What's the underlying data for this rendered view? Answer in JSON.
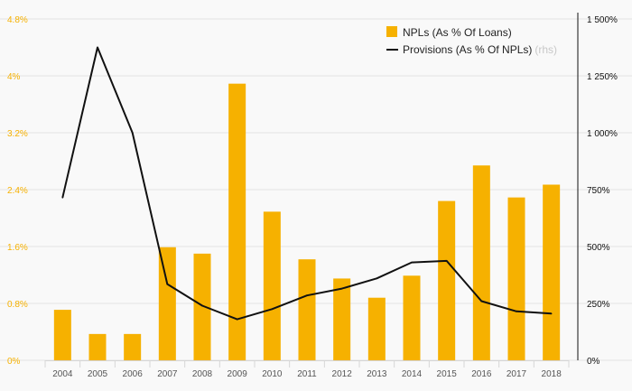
{
  "chart_data": {
    "type": "bar+line",
    "categories": [
      "2004",
      "2005",
      "2006",
      "2007",
      "2008",
      "2009",
      "2010",
      "2011",
      "2012",
      "2013",
      "2014",
      "2015",
      "2016",
      "2017",
      "2018"
    ],
    "series": [
      {
        "name": "NPLs (As % Of Loans)",
        "type": "bar",
        "axis": "left",
        "color": "#f6b100",
        "values": [
          0.71,
          0.37,
          0.37,
          1.59,
          1.5,
          3.89,
          2.09,
          1.42,
          1.15,
          0.88,
          1.19,
          2.24,
          2.74,
          2.29,
          2.47
        ]
      },
      {
        "name": "Provisions (As % Of NPLs)",
        "type": "line",
        "axis": "right",
        "color": "#111111",
        "values": [
          715,
          1375,
          1000,
          335,
          240,
          180,
          225,
          285,
          315,
          360,
          430,
          437,
          260,
          215,
          205
        ]
      }
    ],
    "y_left": {
      "min": 0,
      "max": 4.8,
      "ticks": [
        "0%",
        "0.8%",
        "1.6%",
        "2.4%",
        "3.2%",
        "4%",
        "4.8%"
      ],
      "tick_values": [
        0,
        0.8,
        1.6,
        2.4,
        3.2,
        4.0,
        4.8
      ]
    },
    "y_right": {
      "min": 0,
      "max": 1500,
      "ticks": [
        "0%",
        "250%",
        "500%",
        "750%",
        "1 000%",
        "1 250%",
        "1 500%"
      ],
      "tick_values": [
        0,
        250,
        500,
        750,
        1000,
        1250,
        1500
      ]
    },
    "legend": {
      "position": "top-right",
      "items": [
        {
          "label": "NPLs (As % Of Loans)",
          "suffix": ""
        },
        {
          "label": "Provisions (As % Of NPLs)",
          "suffix": "(rhs)"
        }
      ]
    },
    "grid": true
  }
}
